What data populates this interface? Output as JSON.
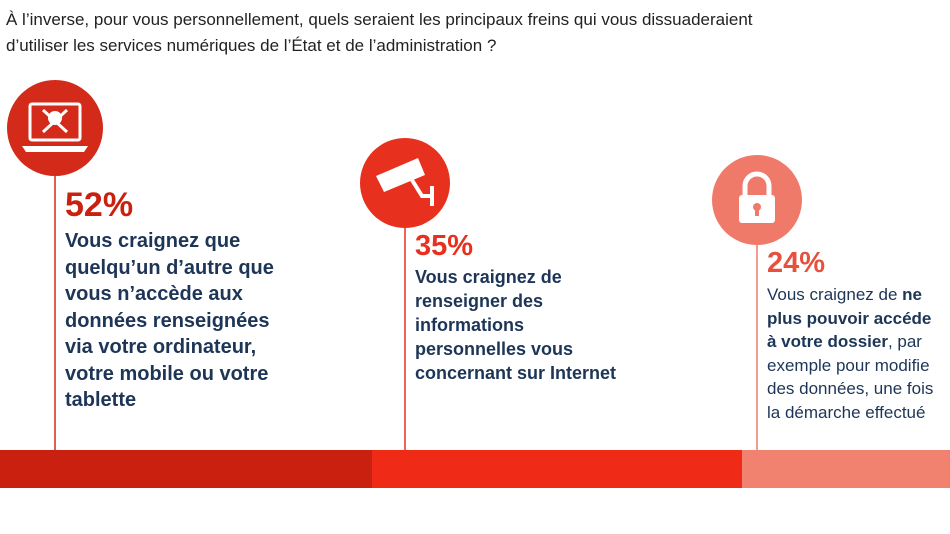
{
  "question": [
    "À l’inverse, pour vous personnellement, quels seraient les principaux freins qui vous dissuaderaient",
    "d’utiliser les services numériques de l’État et de l’administration ?"
  ],
  "items": [
    {
      "percent": "52%",
      "lines": [
        [
          {
            "text": "Vous craignez que",
            "bold": true
          }
        ],
        [
          {
            "text": "quelqu’un d’autre que",
            "bold": true
          }
        ],
        [
          {
            "text": "vous n’accède aux",
            "bold": true
          }
        ],
        [
          {
            "text": "données renseignées",
            "bold": true
          }
        ],
        [
          {
            "text": "via votre ordinateur,",
            "bold": true
          }
        ],
        [
          {
            "text": "votre mobile ou votre",
            "bold": true
          }
        ],
        [
          {
            "text": "tablette",
            "bold": true
          }
        ]
      ]
    },
    {
      "percent": "35%",
      "lines": [
        [
          {
            "text": "Vous craignez de",
            "bold": true
          }
        ],
        [
          {
            "text": "renseigner des",
            "bold": true
          }
        ],
        [
          {
            "text": "informations",
            "bold": true
          }
        ],
        [
          {
            "text": "personnelles vous",
            "bold": true
          }
        ],
        [
          {
            "text": "concernant sur Internet",
            "bold": true
          }
        ]
      ]
    },
    {
      "percent": "24%",
      "lines": [
        [
          {
            "text": "Vous craignez de ",
            "bold": false
          },
          {
            "text": "ne",
            "bold": true
          }
        ],
        [
          {
            "text": "plus pouvoir accéde",
            "bold": true
          }
        ],
        [
          {
            "text": "à votre dossier",
            "bold": true
          },
          {
            "text": ", par",
            "bold": false
          }
        ],
        [
          {
            "text": "exemple pour modifie",
            "bold": false
          }
        ],
        [
          {
            "text": "des données, une fois",
            "bold": false
          }
        ],
        [
          {
            "text": "la démarche effectué",
            "bold": false
          }
        ]
      ]
    }
  ]
}
